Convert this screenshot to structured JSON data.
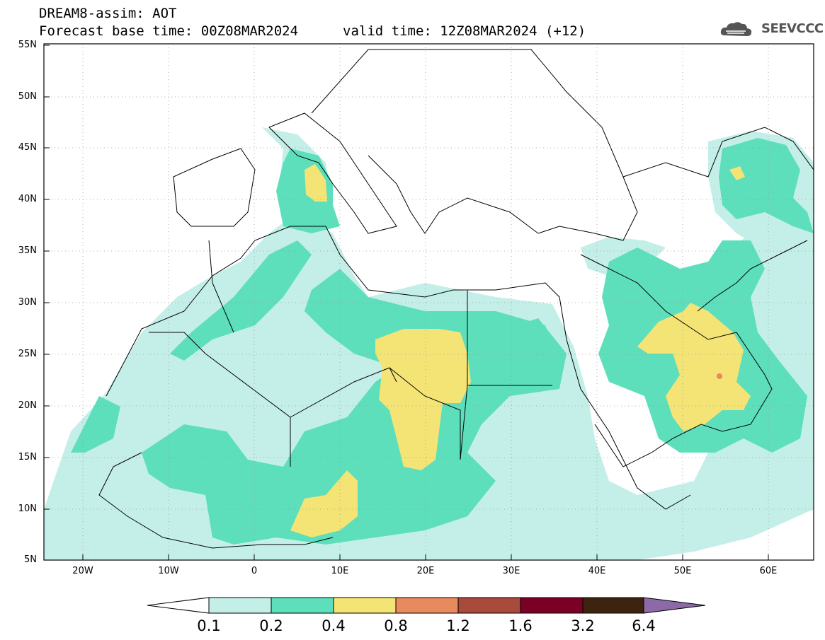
{
  "title": {
    "line1": "DREAM8-assim: AOT",
    "line2": "Forecast base time: 00Z08MAR2024",
    "valid": "valid time: 12Z08MAR2024 (+12)"
  },
  "logo": {
    "text": "SEEVCCC",
    "icon": "cloud-icon"
  },
  "axes": {
    "lat_labels": [
      "55N",
      "50N",
      "45N",
      "40N",
      "35N",
      "30N",
      "25N",
      "20N",
      "15N",
      "10N",
      "5N"
    ],
    "lon_labels": [
      "20W",
      "10W",
      "0",
      "10E",
      "20E",
      "30E",
      "40E",
      "50E",
      "60E"
    ]
  },
  "colorbar": {
    "labels": [
      "0.1",
      "0.2",
      "0.4",
      "0.8",
      "1.2",
      "1.6",
      "3.2",
      "6.4"
    ],
    "colors": [
      "#ffffff",
      "#c4efe8",
      "#5ddfbb",
      "#f4e476",
      "#e78a5e",
      "#a84a3c",
      "#7a0026",
      "#3c2410",
      "#8c6aa8"
    ]
  }
}
